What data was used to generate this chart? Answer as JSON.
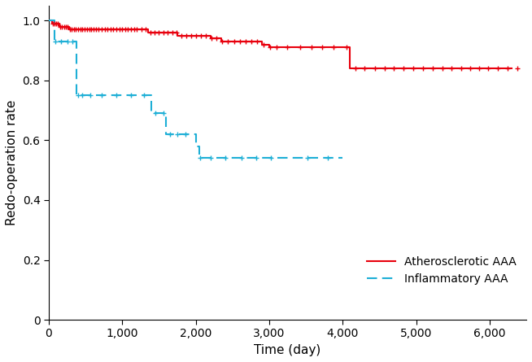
{
  "title": "",
  "xlabel": "Time (day)",
  "ylabel": "Redo-operation rate",
  "xlim": [
    0,
    6500
  ],
  "ylim": [
    0,
    1.05
  ],
  "xticks": [
    0,
    1000,
    2000,
    3000,
    4000,
    5000,
    6000
  ],
  "xtick_labels": [
    "0",
    "1,000",
    "2,000",
    "3,000",
    "4,000",
    "5,000",
    "6,000"
  ],
  "yticks": [
    0.0,
    0.2,
    0.4,
    0.6,
    0.8,
    1.0
  ],
  "red_color": "#E8000D",
  "blue_color": "#1EAFD6",
  "red_line": {
    "times": [
      0,
      50,
      100,
      150,
      200,
      280,
      350,
      420,
      500,
      600,
      700,
      800,
      950,
      1100,
      1250,
      1350,
      1450,
      1550,
      1650,
      1750,
      1900,
      2000,
      2100,
      2200,
      2350,
      2500,
      2650,
      2750,
      2900,
      3000,
      3100,
      3300,
      3500,
      3700,
      3900,
      4100,
      4300,
      4500,
      4700,
      4900,
      5100,
      5300,
      5500,
      5700,
      5900,
      6100,
      6300
    ],
    "surv": [
      1.0,
      0.99,
      0.99,
      0.98,
      0.98,
      0.97,
      0.97,
      0.97,
      0.97,
      0.97,
      0.97,
      0.97,
      0.97,
      0.97,
      0.97,
      0.96,
      0.96,
      0.96,
      0.96,
      0.95,
      0.95,
      0.95,
      0.95,
      0.94,
      0.93,
      0.93,
      0.93,
      0.93,
      0.92,
      0.91,
      0.91,
      0.91,
      0.91,
      0.91,
      0.91,
      0.84,
      0.84,
      0.84,
      0.84,
      0.84,
      0.84,
      0.84,
      0.84,
      0.84,
      0.84,
      0.84,
      0.84
    ]
  },
  "red_censors": [
    55,
    80,
    105,
    125,
    155,
    180,
    210,
    235,
    260,
    290,
    315,
    345,
    370,
    400,
    430,
    460,
    490,
    520,
    550,
    580,
    610,
    645,
    680,
    720,
    760,
    800,
    840,
    880,
    920,
    960,
    1000,
    1040,
    1080,
    1120,
    1160,
    1200,
    1260,
    1320,
    1380,
    1440,
    1500,
    1560,
    1620,
    1680,
    1740,
    1800,
    1870,
    1940,
    2010,
    2070,
    2140,
    2210,
    2280,
    2360,
    2440,
    2520,
    2600,
    2680,
    2760,
    2840,
    2920,
    3010,
    3100,
    3250,
    3420,
    3580,
    3720,
    3880,
    4050,
    4180,
    4300,
    4440,
    4570,
    4700,
    4830,
    4960,
    5090,
    5230,
    5360,
    5480,
    5610,
    5730,
    5860,
    5980,
    6110,
    6250,
    6380
  ],
  "blue_line": {
    "times": [
      0,
      80,
      160,
      250,
      310,
      380,
      430,
      550,
      700,
      900,
      1100,
      1300,
      1400,
      1500,
      1600,
      1700,
      1800,
      1900,
      2000,
      2050,
      2150,
      2200,
      2300,
      2400,
      2600,
      2800,
      3000,
      3500,
      4000
    ],
    "surv": [
      1.0,
      0.93,
      0.93,
      0.93,
      0.93,
      0.75,
      0.75,
      0.75,
      0.75,
      0.75,
      0.75,
      0.75,
      0.69,
      0.69,
      0.62,
      0.62,
      0.62,
      0.62,
      0.58,
      0.54,
      0.54,
      0.54,
      0.54,
      0.54,
      0.54,
      0.54,
      0.54,
      0.54,
      0.54
    ]
  },
  "blue_censors": [
    90,
    170,
    260,
    320,
    400,
    450,
    570,
    720,
    920,
    1120,
    1300,
    1450,
    1560,
    1650,
    1750,
    1860,
    2060,
    2200,
    2400,
    2620,
    2820,
    3020,
    3520,
    3800
  ]
}
